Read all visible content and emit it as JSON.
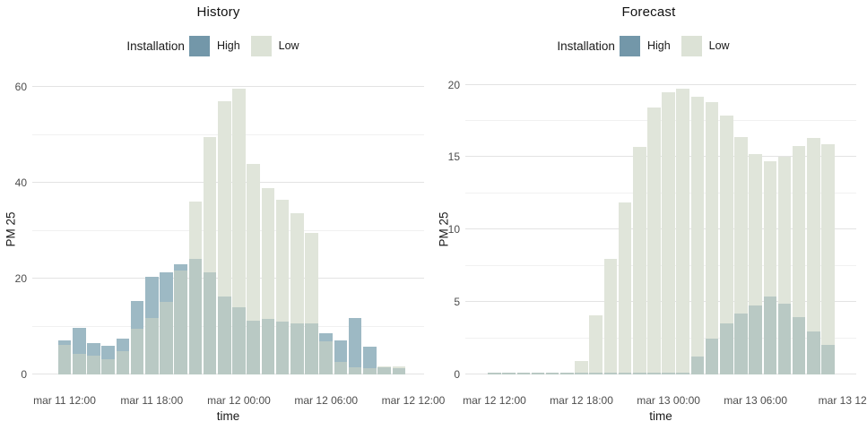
{
  "figure": {
    "background": "#ffffff"
  },
  "chart_data": [
    {
      "id": "history",
      "type": "bar",
      "overlay": "identity-overlap",
      "title": "History",
      "xlabel": "time",
      "ylabel": "PM 25",
      "legend_title": "Installation",
      "legend_position": "top-center",
      "grid": "on",
      "bars_start": "mar 11 12:00",
      "bars_step_hours": 1,
      "x_tick_labels": [
        "mar 11 12:00",
        "mar 11 18:00",
        "mar 12 00:00",
        "mar 12 06:00",
        "mar 12 12:00"
      ],
      "x_tick_hours": [
        0,
        6,
        12,
        18,
        24
      ],
      "y_tick_values": [
        0,
        20,
        40,
        60
      ],
      "y_minor_values": [
        10,
        30,
        50
      ],
      "ylim": [
        0,
        62
      ],
      "overlap_color": "#b9c9c4",
      "series": [
        {
          "name": "High",
          "legend_color": "#7397a9",
          "bar_color": "#9db9c4",
          "values": [
            7.2,
            9.8,
            6.6,
            6.0,
            7.4,
            15.3,
            20.4,
            21.4,
            23.0,
            24.2,
            21.3,
            16.3,
            14.1,
            11.3,
            11.6,
            11.0,
            10.7,
            10.6,
            8.6,
            7.2,
            11.7,
            5.8,
            1.5,
            1.3
          ]
        },
        {
          "name": "Low",
          "legend_color": "#dce2d6",
          "bar_color": "#e0e5da",
          "values": [
            6.2,
            4.3,
            4.0,
            3.2,
            4.8,
            9.6,
            11.7,
            15.2,
            21.7,
            36.1,
            49.6,
            57.1,
            59.6,
            44.0,
            38.9,
            36.4,
            33.7,
            29.5,
            7.0,
            2.7,
            1.5,
            1.3,
            1.6,
            1.7
          ]
        }
      ]
    },
    {
      "id": "forecast",
      "type": "bar",
      "overlay": "identity-overlap",
      "title": "Forecast",
      "xlabel": "time",
      "ylabel": "PM 25",
      "legend_title": "Installation",
      "legend_position": "top-center",
      "grid": "on",
      "bars_start": "mar 12 12:00",
      "bars_step_hours": 1,
      "x_tick_labels": [
        "mar 12 12:00",
        "mar 12 18:00",
        "mar 13 00:00",
        "mar 13 06:00",
        "mar 13 12"
      ],
      "x_tick_hours": [
        0,
        6,
        12,
        18,
        24
      ],
      "y_tick_values": [
        0,
        5,
        10,
        15,
        20
      ],
      "y_minor_values": [
        2.5,
        7.5,
        12.5,
        17.5
      ],
      "ylim": [
        0,
        20.4
      ],
      "overlap_color": "#b9c9c4",
      "series": [
        {
          "name": "High",
          "legend_color": "#7397a9",
          "bar_color": "#9db9c4",
          "values": [
            0.15,
            0.15,
            0.15,
            0.15,
            0.15,
            0.15,
            0.15,
            0.15,
            0.15,
            0.15,
            0.15,
            0.15,
            0.15,
            0.15,
            1.25,
            2.45,
            3.5,
            4.2,
            4.75,
            5.4,
            4.9,
            3.95,
            2.95,
            2.05
          ]
        },
        {
          "name": "Low",
          "legend_color": "#dce2d6",
          "bar_color": "#e0e5da",
          "values": [
            0.15,
            0.15,
            0.15,
            0.15,
            0.15,
            0.15,
            0.9,
            4.1,
            8.0,
            11.9,
            15.7,
            18.4,
            19.5,
            19.7,
            19.2,
            18.8,
            17.9,
            16.4,
            15.2,
            14.7,
            15.0,
            15.8,
            16.3,
            15.9
          ]
        }
      ]
    }
  ]
}
